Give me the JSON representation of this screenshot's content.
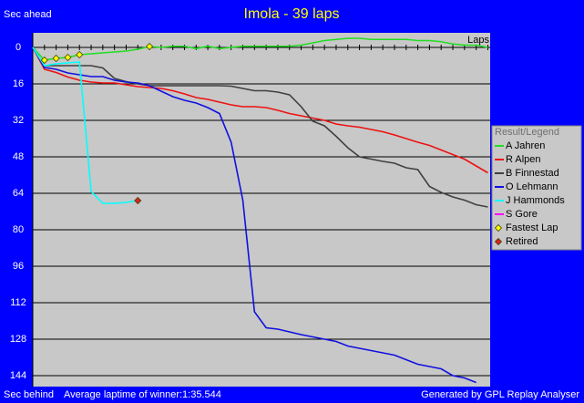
{
  "chart_data": {
    "type": "line",
    "title": "Imola - 39 laps",
    "y_label_top": "Sec ahead",
    "y_label_bottom": "Sec behind",
    "x_label": "Laps",
    "footer_left": "Average laptime of winner:1:35.544",
    "footer_right": "Generated by GPL Replay Analyser",
    "legend_title": "Result/Legend",
    "legend": "right",
    "y_reversed": true,
    "grid": true,
    "xlim": [
      0,
      39.2
    ],
    "ylim": [
      -6.4,
      148.8
    ],
    "yticks": [
      0,
      16,
      32,
      48,
      64,
      80,
      96,
      112,
      128,
      144
    ],
    "xticks": [
      0,
      1,
      2,
      3,
      4,
      5,
      6,
      7,
      8,
      9,
      10,
      11,
      12,
      13,
      14,
      15,
      16,
      17,
      18,
      19,
      20,
      21,
      22,
      23,
      24,
      25,
      26,
      27,
      28,
      29,
      30,
      31,
      32,
      33,
      34,
      35,
      36,
      37,
      38,
      39
    ],
    "x": [
      0,
      1,
      2,
      3,
      4,
      5,
      6,
      7,
      8,
      9,
      10,
      11,
      12,
      13,
      14,
      15,
      16,
      17,
      18,
      19,
      20,
      21,
      22,
      23,
      24,
      25,
      26,
      27,
      28,
      29,
      30,
      31,
      32,
      33,
      34,
      35,
      36,
      37,
      38,
      39
    ],
    "series": [
      {
        "name": "A Jahren",
        "color": "#22dd22",
        "values": [
          0,
          5.6,
          4.8,
          4.4,
          3.2,
          2.8,
          2.4,
          2,
          1.6,
          0.8,
          -0.4,
          0,
          -0.5,
          -0.5,
          0.5,
          -0.5,
          0.5,
          0,
          -0.5,
          -0.5,
          -0.5,
          -0.5,
          -0.5,
          -1,
          -2,
          -3,
          -3.5,
          -4,
          -4,
          -3.5,
          -3.5,
          -3.5,
          -3.5,
          -3,
          -3,
          -2.5,
          -1.5,
          -1,
          -1,
          0
        ]
      },
      {
        "name": "R Alpen",
        "color": "#ee1111",
        "values": [
          0,
          9.6,
          11,
          13,
          14.4,
          15.2,
          15.6,
          15.6,
          16.4,
          17.2,
          17.6,
          18,
          19,
          20.4,
          22,
          22.8,
          24,
          25.2,
          26,
          26,
          26.4,
          27.6,
          29,
          30,
          31,
          32,
          33.6,
          34.4,
          35,
          36,
          37,
          38.4,
          40,
          41.6,
          43,
          45,
          47,
          49,
          52,
          55
        ]
      },
      {
        "name": "B Finnestad",
        "color": "#404040",
        "values": [
          0,
          8,
          8,
          8,
          8,
          8,
          9,
          13.6,
          15,
          16,
          16.8,
          16.8,
          16.8,
          16.8,
          16.8,
          16.8,
          16.8,
          17,
          18,
          19,
          19,
          19.6,
          20.8,
          26,
          32.4,
          34.4,
          39,
          44,
          48,
          49,
          50,
          50.8,
          52.8,
          53.6,
          61,
          63.6,
          65.6,
          67,
          69,
          70
        ]
      },
      {
        "name": "O Lehmann",
        "color": "#1010e0",
        "values": [
          0,
          8.8,
          9.6,
          11.2,
          12,
          12.8,
          12.8,
          14.4,
          15.2,
          15.6,
          16.8,
          19.2,
          21.6,
          23.2,
          24.4,
          26.4,
          29,
          41.6,
          67,
          116,
          123,
          123.6,
          124.8,
          126,
          127,
          128,
          129,
          131,
          132,
          133,
          134,
          135,
          137,
          139,
          140,
          141,
          144,
          145,
          147,
          null
        ]
      },
      {
        "name": "J Hammonds",
        "color": "#00ffff",
        "values": [
          0,
          8,
          7.2,
          6.8,
          6.4,
          63.2,
          68.4,
          68.4,
          68,
          67.2,
          null,
          null,
          null,
          null,
          null,
          null,
          null,
          null,
          null,
          null,
          null,
          null,
          null,
          null,
          null,
          null,
          null,
          null,
          null,
          null,
          null,
          null,
          null,
          null,
          null,
          null,
          null,
          null,
          null,
          null
        ]
      },
      {
        "name": "S Gore",
        "color": "#ff00ff",
        "values": [
          null,
          null,
          null,
          null,
          null,
          null,
          null,
          null,
          null,
          null,
          null,
          null,
          null,
          null,
          null,
          null,
          null,
          null,
          null,
          null,
          null,
          null,
          null,
          null,
          null,
          null,
          null,
          null,
          null,
          null,
          null,
          null,
          null,
          null,
          null,
          null,
          null,
          null,
          null,
          null
        ]
      }
    ],
    "markers": [
      {
        "name": "Fastest Lap",
        "color": "#ffff00",
        "x": [
          1,
          2,
          3,
          4,
          10
        ],
        "values": [
          5.6,
          4.8,
          4.4,
          3.2,
          -0.4
        ]
      },
      {
        "name": "Retired",
        "color": "#dd2222",
        "x": [
          9
        ],
        "values": [
          67.2
        ]
      }
    ]
  }
}
